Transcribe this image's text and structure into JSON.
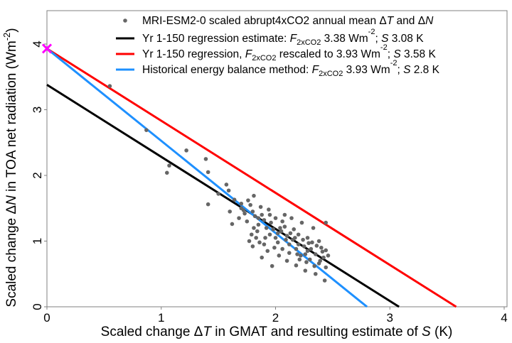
{
  "chart_data": {
    "type": "scatter",
    "xlabel_parts": [
      "Scaled change ",
      "Δ",
      "T",
      " in GMAT and resulting estimate of ",
      "S",
      " (K)"
    ],
    "ylabel_parts": [
      "Scaled change ",
      "Δ",
      "N",
      " in TOA net radiation (Wm",
      "-2",
      ")"
    ],
    "xlim": [
      0,
      4
    ],
    "ylim": [
      0,
      4
    ],
    "xticks": [
      "0",
      "1",
      "2",
      "3",
      "4"
    ],
    "yticks": [
      "0",
      "1",
      "2",
      "3",
      "4"
    ],
    "legend_position": "top-right",
    "colors": {
      "points": "#666666",
      "black": "#000000",
      "red": "#ff0000",
      "blue": "#1e90ff",
      "marker": "#ff00ff",
      "axis": "#808080"
    },
    "legend": [
      {
        "kind": "point",
        "parts": [
          "MRI-ESM2-0 scaled abrupt4xCO2 annual mean ",
          "Δ",
          "T",
          " and ",
          "Δ",
          "N"
        ]
      },
      {
        "kind": "line",
        "color": "#000000",
        "parts": [
          "Yr 1-150 regression estimate: ",
          "F",
          "2xCO2",
          " 3.38 Wm",
          "-2",
          "; ",
          "S",
          " 3.08 K"
        ]
      },
      {
        "kind": "line",
        "color": "#ff0000",
        "parts": [
          "Yr 1-150 regression, ",
          "F",
          "2xCO2",
          " rescaled to 3.93 Wm",
          "-2",
          "; ",
          "S",
          " 3.58 K"
        ]
      },
      {
        "kind": "line",
        "color": "#1e90ff",
        "parts": [
          "Historical energy balance method:  ",
          "F",
          "2xCO2",
          " 3.93 Wm",
          "-2",
          "; ",
          "S",
          " 2.8 K"
        ]
      }
    ],
    "lines": [
      {
        "name": "Yr 1-150 regression",
        "color": "#000000",
        "intercept": 3.38,
        "x_intercept": 3.08
      },
      {
        "name": "Rescaled regression",
        "color": "#ff0000",
        "intercept": 3.93,
        "x_intercept": 3.58
      },
      {
        "name": "Historical energy balance",
        "color": "#1e90ff",
        "intercept": 3.93,
        "x_intercept": 2.8
      }
    ],
    "marker_point": {
      "x": 0,
      "y": 3.93
    },
    "points": [
      [
        0.55,
        3.36
      ],
      [
        0.87,
        2.69
      ],
      [
        1.07,
        2.15
      ],
      [
        1.05,
        2.04
      ],
      [
        1.22,
        2.38
      ],
      [
        1.39,
        2.25
      ],
      [
        1.41,
        2.05
      ],
      [
        1.41,
        1.56
      ],
      [
        1.59,
        1.77
      ],
      [
        1.57,
        1.86
      ],
      [
        1.5,
        1.72
      ],
      [
        1.64,
        1.63
      ],
      [
        1.7,
        1.57
      ],
      [
        1.72,
        1.47
      ],
      [
        1.62,
        1.26
      ],
      [
        1.81,
        1.69
      ],
      [
        1.76,
        1.62
      ],
      [
        1.78,
        1.55
      ],
      [
        1.8,
        1.45
      ],
      [
        1.82,
        1.38
      ],
      [
        1.75,
        1.3
      ],
      [
        1.85,
        1.25
      ],
      [
        1.88,
        1.4
      ],
      [
        1.9,
        1.32
      ],
      [
        1.92,
        1.2
      ],
      [
        1.95,
        1.1
      ],
      [
        1.83,
        1.05
      ],
      [
        1.86,
        0.98
      ],
      [
        1.8,
        0.92
      ],
      [
        1.9,
        0.95
      ],
      [
        1.93,
        0.85
      ],
      [
        1.96,
        1.28
      ],
      [
        1.98,
        1.18
      ],
      [
        2.0,
        1.05
      ],
      [
        2.02,
        0.98
      ],
      [
        2.05,
        1.15
      ],
      [
        2.08,
        1.22
      ],
      [
        2.1,
        1.08
      ],
      [
        2.12,
        0.95
      ],
      [
        2.15,
        1.02
      ],
      [
        2.18,
        0.88
      ],
      [
        2.2,
        1.1
      ],
      [
        2.22,
        0.78
      ],
      [
        2.25,
        0.92
      ],
      [
        2.28,
        0.85
      ],
      [
        2.3,
        0.72
      ],
      [
        2.32,
        0.98
      ],
      [
        2.35,
        0.8
      ],
      [
        2.38,
        0.66
      ],
      [
        2.4,
        0.9
      ],
      [
        2.42,
        0.75
      ],
      [
        2.44,
        0.6
      ],
      [
        2.46,
        0.78
      ],
      [
        2.43,
        0.4
      ],
      [
        2.35,
        0.5
      ],
      [
        2.26,
        0.55
      ],
      [
        2.18,
        0.63
      ],
      [
        2.1,
        0.7
      ],
      [
        2.03,
        0.78
      ],
      [
        1.97,
        0.62
      ],
      [
        1.88,
        0.75
      ],
      [
        2.14,
        1.35
      ],
      [
        2.08,
        1.4
      ],
      [
        2.23,
        1.28
      ],
      [
        2.33,
        1.2
      ],
      [
        2.44,
        1.28
      ],
      [
        2.28,
        1.05
      ],
      [
        2.38,
        1.0
      ],
      [
        2.16,
        1.18
      ],
      [
        2.06,
        1.3
      ],
      [
        2.0,
        1.35
      ],
      [
        1.94,
        1.48
      ],
      [
        1.87,
        1.52
      ],
      [
        1.84,
        1.15
      ],
      [
        1.79,
        1.1
      ],
      [
        1.73,
        1.42
      ],
      [
        1.7,
        1.5
      ],
      [
        1.68,
        1.35
      ],
      [
        1.6,
        1.45
      ],
      [
        2.2,
        0.95
      ],
      [
        2.26,
        0.8
      ],
      [
        2.31,
        0.88
      ],
      [
        2.36,
        0.93
      ],
      [
        2.41,
        0.84
      ],
      [
        2.12,
        0.82
      ],
      [
        2.24,
        1.02
      ],
      [
        2.02,
        1.12
      ],
      [
        1.91,
        1.05
      ],
      [
        1.99,
        0.9
      ],
      [
        2.06,
        0.88
      ],
      [
        2.17,
        1.05
      ],
      [
        2.29,
        0.97
      ],
      [
        2.39,
        0.7
      ],
      [
        2.27,
        0.68
      ],
      [
        2.21,
        0.72
      ],
      [
        1.85,
        1.35
      ],
      [
        1.95,
        1.4
      ],
      [
        2.04,
        1.2
      ],
      [
        2.09,
        1.02
      ],
      [
        2.13,
        1.12
      ],
      [
        2.19,
        0.8
      ],
      [
        2.34,
        0.62
      ],
      [
        2.44,
        0.86
      ],
      [
        1.81,
        1.2
      ],
      [
        1.77,
        1.0
      ]
    ]
  }
}
